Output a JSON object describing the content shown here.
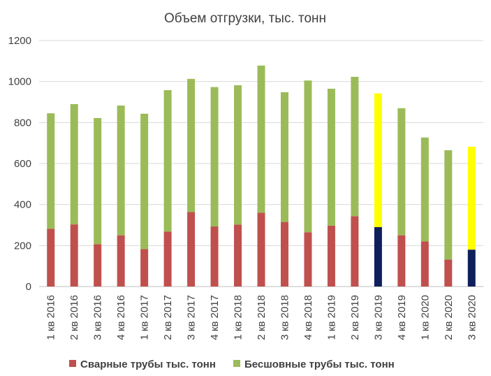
{
  "chart_data": {
    "type": "bar",
    "stacked": true,
    "title": "Объем отгрузки, тыс. тонн",
    "xlabel": "",
    "ylabel": "",
    "ylim": [
      0,
      1200
    ],
    "yticks": [
      0,
      200,
      400,
      600,
      800,
      1000,
      1200
    ],
    "grid": true,
    "legend_position": "bottom",
    "categories": [
      "1 кв 2016",
      "2 кв 2016",
      "3 кв 2016",
      "4 кв 2016",
      "1 кв 2017",
      "2 кв 2017",
      "3 кв 2017",
      "4 кв 2017",
      "1 кв 2018",
      "2 кв 2018",
      "3 кв 2018",
      "4 кв 2018",
      "1 кв 2019",
      "2 кв 2019",
      "3 кв 2019",
      "4 кв 2019",
      "1 кв 2020",
      "2 кв 2020",
      "3 кв 2020"
    ],
    "series": [
      {
        "name": "Сварные трубы тыс. тонн",
        "color": "#c0504d",
        "values": [
          282,
          303,
          207,
          250,
          183,
          268,
          363,
          293,
          302,
          360,
          315,
          265,
          297,
          343,
          290,
          250,
          220,
          132,
          180
        ]
      },
      {
        "name": "Бесшовные трубы тыс. тонн",
        "color": "#9bbb59",
        "values": [
          563,
          587,
          615,
          633,
          660,
          690,
          650,
          680,
          680,
          718,
          633,
          740,
          668,
          680,
          652,
          620,
          507,
          533,
          502
        ]
      }
    ],
    "highlight": {
      "indices": [
        14,
        18
      ],
      "colors": {
        "Сварные трубы тыс. тонн": "#0f1f5c",
        "Бесшовные трубы тыс. тонн": "#ffff00"
      }
    }
  }
}
